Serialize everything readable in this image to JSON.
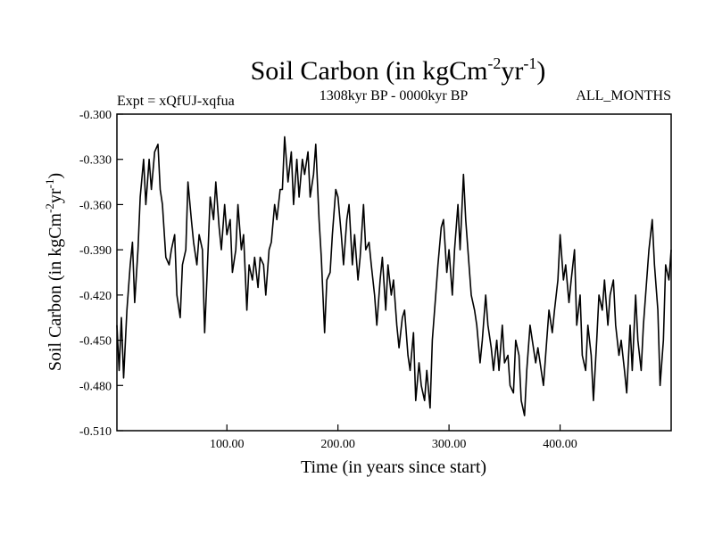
{
  "chart_data": {
    "type": "line",
    "title_main": "Soil Carbon (in kgCm",
    "title_sup1": "-2",
    "title_mid": "yr",
    "title_sup2": "-1",
    "title_end": ")",
    "subtitle_left": "Expt = xQfUJ-xqfua",
    "subtitle_center": "1308kyr BP - 0000kyr BP",
    "subtitle_right": "ALL_MONTHS",
    "xlabel": "Time (in years since start)",
    "ylabel_main": "Soil Carbon (in kgCm",
    "ylabel_sup1": "-2",
    "ylabel_mid": "yr",
    "ylabel_sup2": "-1",
    "ylabel_end": ")",
    "xlim": [
      1,
      500
    ],
    "ylim": [
      -0.51,
      -0.3
    ],
    "x_ticks": [
      100,
      200,
      300,
      400
    ],
    "x_tick_labels": [
      "100.00",
      "200.00",
      "300.00",
      "400.00"
    ],
    "y_ticks": [
      -0.3,
      -0.33,
      -0.36,
      -0.39,
      -0.42,
      -0.45,
      -0.48,
      -0.51
    ],
    "y_tick_labels": [
      "-0.300",
      "-0.330",
      "-0.360",
      "-0.390",
      "-0.420",
      "-0.450",
      "-0.480",
      "-0.510"
    ],
    "series": [
      {
        "name": "Soil Carbon",
        "color": "#000000",
        "x": [
          1,
          3,
          5,
          7,
          10,
          13,
          15,
          17,
          20,
          22,
          25,
          27,
          30,
          32,
          35,
          38,
          40,
          42,
          45,
          48,
          50,
          53,
          55,
          58,
          60,
          63,
          65,
          68,
          70,
          73,
          75,
          78,
          80,
          82,
          85,
          88,
          90,
          93,
          95,
          98,
          100,
          103,
          105,
          108,
          110,
          113,
          115,
          118,
          120,
          123,
          125,
          128,
          130,
          133,
          135,
          138,
          140,
          143,
          145,
          148,
          150,
          152,
          155,
          158,
          160,
          163,
          165,
          168,
          170,
          173,
          175,
          178,
          180,
          183,
          185,
          188,
          190,
          193,
          195,
          198,
          200,
          203,
          205,
          208,
          210,
          213,
          215,
          218,
          220,
          223,
          225,
          228,
          230,
          233,
          235,
          238,
          240,
          243,
          245,
          248,
          250,
          253,
          255,
          258,
          260,
          263,
          265,
          268,
          270,
          273,
          275,
          278,
          280,
          283,
          285,
          288,
          290,
          293,
          295,
          298,
          300,
          303,
          305,
          308,
          310,
          313,
          315,
          318,
          320,
          323,
          325,
          328,
          330,
          333,
          335,
          338,
          340,
          343,
          345,
          348,
          350,
          353,
          355,
          358,
          360,
          363,
          365,
          368,
          370,
          373,
          375,
          378,
          380,
          383,
          385,
          388,
          390,
          393,
          395,
          398,
          400,
          403,
          405,
          408,
          410,
          413,
          415,
          418,
          420,
          423,
          425,
          428,
          430,
          433,
          435,
          438,
          440,
          443,
          445,
          448,
          450,
          453,
          455,
          458,
          460,
          463,
          465,
          468,
          470,
          473,
          475,
          478,
          480,
          483,
          485,
          488,
          490,
          493,
          495,
          498,
          500
        ],
        "values": [
          -0.44,
          -0.47,
          -0.435,
          -0.475,
          -0.43,
          -0.4,
          -0.385,
          -0.425,
          -0.39,
          -0.355,
          -0.33,
          -0.36,
          -0.33,
          -0.35,
          -0.325,
          -0.32,
          -0.35,
          -0.36,
          -0.395,
          -0.4,
          -0.39,
          -0.38,
          -0.42,
          -0.435,
          -0.4,
          -0.39,
          -0.345,
          -0.37,
          -0.385,
          -0.4,
          -0.38,
          -0.39,
          -0.445,
          -0.41,
          -0.355,
          -0.37,
          -0.345,
          -0.375,
          -0.39,
          -0.36,
          -0.38,
          -0.37,
          -0.405,
          -0.39,
          -0.36,
          -0.39,
          -0.38,
          -0.43,
          -0.4,
          -0.41,
          -0.395,
          -0.415,
          -0.395,
          -0.4,
          -0.42,
          -0.39,
          -0.385,
          -0.36,
          -0.37,
          -0.35,
          -0.35,
          -0.315,
          -0.345,
          -0.325,
          -0.36,
          -0.33,
          -0.355,
          -0.33,
          -0.34,
          -0.325,
          -0.355,
          -0.34,
          -0.32,
          -0.37,
          -0.395,
          -0.445,
          -0.41,
          -0.405,
          -0.38,
          -0.35,
          -0.355,
          -0.38,
          -0.4,
          -0.37,
          -0.36,
          -0.4,
          -0.38,
          -0.41,
          -0.395,
          -0.36,
          -0.39,
          -0.385,
          -0.4,
          -0.42,
          -0.44,
          -0.41,
          -0.395,
          -0.43,
          -0.4,
          -0.42,
          -0.41,
          -0.44,
          -0.455,
          -0.435,
          -0.43,
          -0.46,
          -0.47,
          -0.445,
          -0.49,
          -0.465,
          -0.48,
          -0.49,
          -0.47,
          -0.495,
          -0.45,
          -0.42,
          -0.4,
          -0.375,
          -0.37,
          -0.405,
          -0.39,
          -0.42,
          -0.39,
          -0.36,
          -0.39,
          -0.34,
          -0.37,
          -0.4,
          -0.42,
          -0.43,
          -0.44,
          -0.465,
          -0.45,
          -0.42,
          -0.44,
          -0.455,
          -0.47,
          -0.45,
          -0.47,
          -0.44,
          -0.465,
          -0.46,
          -0.48,
          -0.485,
          -0.45,
          -0.46,
          -0.49,
          -0.5,
          -0.47,
          -0.44,
          -0.45,
          -0.465,
          -0.455,
          -0.47,
          -0.48,
          -0.45,
          -0.43,
          -0.445,
          -0.43,
          -0.41,
          -0.38,
          -0.41,
          -0.4,
          -0.425,
          -0.41,
          -0.39,
          -0.44,
          -0.42,
          -0.46,
          -0.47,
          -0.44,
          -0.46,
          -0.49,
          -0.45,
          -0.42,
          -0.43,
          -0.41,
          -0.44,
          -0.42,
          -0.41,
          -0.44,
          -0.46,
          -0.45,
          -0.47,
          -0.485,
          -0.44,
          -0.47,
          -0.42,
          -0.45,
          -0.47,
          -0.44,
          -0.41,
          -0.39,
          -0.37,
          -0.4,
          -0.43,
          -0.48,
          -0.45,
          -0.4,
          -0.41,
          -0.39
        ]
      }
    ]
  }
}
